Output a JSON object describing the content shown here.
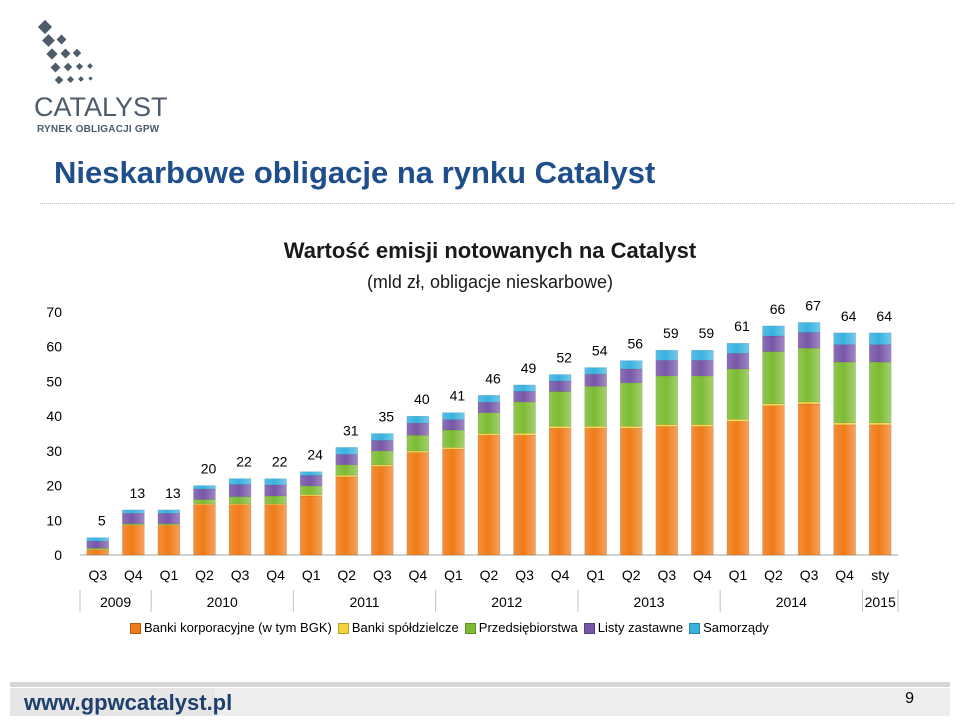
{
  "logo": {
    "name": "CATALYST",
    "sub": "RYNEK OBLIGACJI GPW"
  },
  "page_title": "Nieskarbowe obligacje na rynku Catalyst",
  "footer": {
    "url": "www.gpwcatalyst.pl",
    "page_number": "9"
  },
  "colors": {
    "banki_korporacyjne": "#f07b18",
    "banki_spoldzielcze": "#f5d33a",
    "przedsiebiorstwa": "#7dbb33",
    "listy_zastawne": "#7756a8",
    "samorzady": "#39b2e0",
    "title_blue": "#1f4e8c"
  },
  "chart_data": {
    "type": "bar",
    "stacked": true,
    "title": "Wartość emisji notowanych na Catalyst",
    "subtitle": "(mld zł, obligacje nieskarbowe)",
    "categories": [
      "Q3",
      "Q4",
      "Q1",
      "Q2",
      "Q3",
      "Q4",
      "Q1",
      "Q2",
      "Q3",
      "Q4",
      "Q1",
      "Q2",
      "Q3",
      "Q4",
      "Q1",
      "Q2",
      "Q3",
      "Q4",
      "Q1",
      "Q2",
      "Q3",
      "Q4",
      "sty"
    ],
    "year_groups": [
      {
        "label": "2009",
        "count": 2
      },
      {
        "label": "2010",
        "count": 4
      },
      {
        "label": "2011",
        "count": 4
      },
      {
        "label": "2012",
        "count": 4
      },
      {
        "label": "2013",
        "count": 4
      },
      {
        "label": "2014",
        "count": 4
      },
      {
        "label": "2015",
        "count": 1
      }
    ],
    "totals": [
      "5",
      "13",
      "13",
      "20",
      "22",
      "22",
      "24",
      "31",
      "35",
      "40",
      "41",
      "46",
      "49",
      "52",
      "54",
      "56",
      "59",
      "59",
      "61",
      "66",
      "67",
      "64",
      "64"
    ],
    "series": [
      {
        "name": "Banki korporacyjne (w tym BGK)",
        "color_key": "banki_korporacyjne",
        "values": [
          1.5,
          8.5,
          8.5,
          14.5,
          14.5,
          14.5,
          17.0,
          22.5,
          25.5,
          29.5,
          30.5,
          34.5,
          34.5,
          36.5,
          36.5,
          36.5,
          37.0,
          37.0,
          38.5,
          43.0,
          43.5,
          37.5,
          37.5
        ]
      },
      {
        "name": "Banki spółdzielcze",
        "color_key": "banki_spoldzielcze",
        "values": [
          0.2,
          0.2,
          0.2,
          0.3,
          0.3,
          0.3,
          0.4,
          0.5,
          0.5,
          0.5,
          0.5,
          0.5,
          0.6,
          0.6,
          0.6,
          0.6,
          0.6,
          0.6,
          0.6,
          0.6,
          0.6,
          0.6,
          0.6
        ]
      },
      {
        "name": "Przedsiębiorstwa",
        "color_key": "przedsiebiorstwa",
        "values": [
          0.3,
          0.3,
          0.3,
          1.2,
          2.0,
          2.2,
          2.5,
          3.0,
          4.0,
          4.5,
          5.0,
          6.0,
          9.0,
          10.0,
          11.5,
          12.5,
          14.0,
          14.0,
          14.5,
          15.0,
          15.5,
          17.5,
          17.5
        ]
      },
      {
        "name": "Listy zastawne",
        "color_key": "listy_zastawne",
        "values": [
          2.0,
          3.0,
          3.0,
          3.0,
          3.5,
          3.2,
          3.0,
          3.0,
          3.0,
          3.5,
          3.0,
          3.0,
          3.0,
          3.0,
          3.5,
          4.0,
          4.5,
          4.5,
          4.5,
          4.5,
          4.5,
          5.0,
          5.0
        ]
      },
      {
        "name": "Samorządy",
        "color_key": "samorzady",
        "values": [
          1.0,
          1.0,
          1.0,
          1.0,
          1.7,
          1.8,
          1.1,
          2.0,
          2.0,
          2.0,
          2.0,
          2.0,
          1.9,
          1.9,
          1.9,
          2.4,
          2.9,
          2.9,
          2.9,
          2.9,
          2.9,
          3.4,
          3.4
        ]
      }
    ],
    "ylim": [
      0,
      70
    ],
    "yticks": [
      "0",
      "10",
      "20",
      "30",
      "40",
      "50",
      "60",
      "70"
    ],
    "legend_position": "bottom",
    "grid": false
  }
}
